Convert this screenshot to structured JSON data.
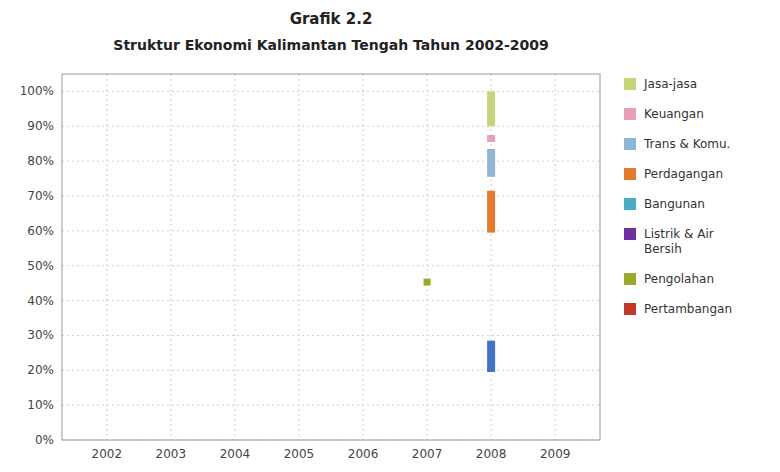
{
  "chart_data": {
    "type": "range",
    "title": "Grafik 2.2",
    "subtitle": "Struktur Ekonomi Kalimantan Tengah Tahun 2002-2009",
    "xlim": [
      2001.3,
      2009.7
    ],
    "xticks": [
      2002,
      2003,
      2004,
      2005,
      2006,
      2007,
      2008,
      2009
    ],
    "ylim": [
      0,
      1.05
    ],
    "yticks": [
      {
        "value": 0,
        "label": "0%"
      },
      {
        "value": 0.1,
        "label": "10%"
      },
      {
        "value": 0.2,
        "label": "20%"
      },
      {
        "value": 0.3,
        "label": "30%"
      },
      {
        "value": 0.4,
        "label": "40%"
      },
      {
        "value": 0.5,
        "label": "50%"
      },
      {
        "value": 0.6,
        "label": "60%"
      },
      {
        "value": 0.7,
        "label": "70%"
      },
      {
        "value": 0.8,
        "label": "80%"
      },
      {
        "value": 0.9,
        "label": "90%"
      },
      {
        "value": 1.0,
        "label": "100%"
      }
    ],
    "grid": true,
    "legend": "right",
    "series": [
      {
        "name": "Jasa-jasa",
        "color": "#c4d67b",
        "type": "range",
        "x": [
          2008
        ],
        "low": [
          0.9
        ],
        "high": [
          1.0
        ]
      },
      {
        "name": "Keuangan",
        "color": "#e8a0b4",
        "type": "range",
        "x": [
          2008
        ],
        "low": [
          0.855
        ],
        "high": [
          0.875
        ]
      },
      {
        "name": "Trans & Komu.",
        "color": "#93b5d5",
        "type": "range",
        "x": [
          2008
        ],
        "low": [
          0.755
        ],
        "high": [
          0.835
        ]
      },
      {
        "name": "Perdagangan",
        "color": "#e07b30",
        "type": "range",
        "x": [
          2008
        ],
        "low": [
          0.595
        ],
        "high": [
          0.715
        ]
      },
      {
        "name": "Bangunan",
        "color": "#4bacc6"
      },
      {
        "name": "Listrik & Air\nBersih",
        "color": "#7030a0"
      },
      {
        "name": "Pengolahan",
        "color": "#9aaa2b",
        "type": "scatter",
        "marker": "square",
        "x": [
          2007
        ],
        "values": [
          0.453
        ]
      },
      {
        "name": "Pertambangan",
        "color": "#c0392b"
      },
      {
        "color": "#4472c4",
        "type": "range",
        "x": [
          2008
        ],
        "low": [
          0.195
        ],
        "high": [
          0.285
        ]
      }
    ]
  }
}
